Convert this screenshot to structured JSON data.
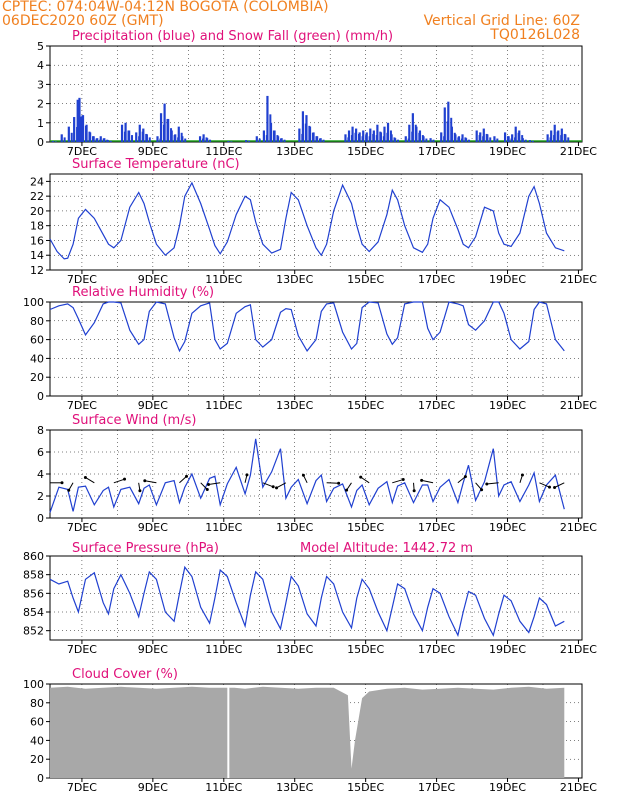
{
  "header": {
    "line1_left": "CPTEC:   074:04W-04:12N   BOGOTA (COLOMBIA)",
    "line2_left": "06DEC2020 60Z (GMT)",
    "line2_right": "Vertical Grid Line: 60Z",
    "line3_right": "TQ0126L028"
  },
  "colors": {
    "header": "#f08020",
    "title": "#e0107a",
    "line": "#2040d0",
    "snow": "#20a020",
    "cloud": "#a8a8a8"
  },
  "x_ticks": [
    "7DEC",
    "9DEC",
    "11DEC",
    "13DEC",
    "15DEC",
    "17DEC",
    "19DEC",
    "21DEC"
  ],
  "chart_data": [
    {
      "type": "bar",
      "title": "Precipitation (blue) and Snow Fall (green) (mm/h)",
      "ylim": [
        0,
        5
      ],
      "yticks": [
        0,
        1,
        2,
        3,
        4,
        5
      ],
      "x_unit": "days since 06DEC2020 06Z",
      "series": [
        {
          "name": "Precipitation",
          "values": [
            [
              0.05,
              0.05
            ],
            [
              0.3,
              0.4
            ],
            [
              0.5,
              0.8
            ],
            [
              0.65,
              1.3
            ],
            [
              0.75,
              2.2
            ],
            [
              0.8,
              2.3
            ],
            [
              0.9,
              1.4
            ],
            [
              1.0,
              0.9
            ],
            [
              1.1,
              0.5
            ],
            [
              1.2,
              0.3
            ],
            [
              1.3,
              0.2
            ],
            [
              1.4,
              0.3
            ],
            [
              1.5,
              0.2
            ],
            [
              1.6,
              0.1
            ],
            [
              2.0,
              0.9
            ],
            [
              2.1,
              1.0
            ],
            [
              2.2,
              0.6
            ],
            [
              2.4,
              0.5
            ],
            [
              2.5,
              0.9
            ],
            [
              2.6,
              0.7
            ],
            [
              2.7,
              0.4
            ],
            [
              3.0,
              0.3
            ],
            [
              3.1,
              1.5
            ],
            [
              3.2,
              2.0
            ],
            [
              3.3,
              1.2
            ],
            [
              3.4,
              0.6
            ],
            [
              3.5,
              0.4
            ],
            [
              3.6,
              0.8
            ],
            [
              3.7,
              0.3
            ],
            [
              4.2,
              0.3
            ],
            [
              4.3,
              0.4
            ],
            [
              4.4,
              0.2
            ],
            [
              5.0,
              0.05
            ],
            [
              5.5,
              0.1
            ],
            [
              5.8,
              0.3
            ],
            [
              6.0,
              0.6
            ],
            [
              6.1,
              2.4
            ],
            [
              6.2,
              1.0
            ],
            [
              6.3,
              0.6
            ],
            [
              6.4,
              0.3
            ],
            [
              6.5,
              0.2
            ],
            [
              7.0,
              0.7
            ],
            [
              7.1,
              1.6
            ],
            [
              7.2,
              1.4
            ],
            [
              7.3,
              0.8
            ],
            [
              7.4,
              0.5
            ],
            [
              7.5,
              0.3
            ],
            [
              7.6,
              0.2
            ],
            [
              8.3,
              0.4
            ],
            [
              8.4,
              0.6
            ],
            [
              8.5,
              0.8
            ],
            [
              8.6,
              0.7
            ],
            [
              8.7,
              0.5
            ],
            [
              8.8,
              0.6
            ],
            [
              8.9,
              0.5
            ],
            [
              9.0,
              0.7
            ],
            [
              9.1,
              0.6
            ],
            [
              9.2,
              0.9
            ],
            [
              9.3,
              0.5
            ],
            [
              9.4,
              0.8
            ],
            [
              9.5,
              1.0
            ],
            [
              9.6,
              0.4
            ],
            [
              9.7,
              0.2
            ],
            [
              10.0,
              0.3
            ],
            [
              10.1,
              0.9
            ],
            [
              10.2,
              1.5
            ],
            [
              10.3,
              0.8
            ],
            [
              10.4,
              0.6
            ],
            [
              10.5,
              0.3
            ],
            [
              10.7,
              0.2
            ],
            [
              11.0,
              0.5
            ],
            [
              11.1,
              1.8
            ],
            [
              11.2,
              2.1
            ],
            [
              11.3,
              0.8
            ],
            [
              11.4,
              0.4
            ],
            [
              11.5,
              0.3
            ],
            [
              11.6,
              0.4
            ],
            [
              11.7,
              0.2
            ],
            [
              12.0,
              0.6
            ],
            [
              12.1,
              0.5
            ],
            [
              12.2,
              0.7
            ],
            [
              12.3,
              0.4
            ],
            [
              12.5,
              0.3
            ],
            [
              12.8,
              0.5
            ],
            [
              12.9,
              0.3
            ],
            [
              13.0,
              0.4
            ],
            [
              13.1,
              0.8
            ],
            [
              13.2,
              0.6
            ],
            [
              13.3,
              0.2
            ],
            [
              13.5,
              0.1
            ],
            [
              14.0,
              0.4
            ],
            [
              14.1,
              0.6
            ],
            [
              14.2,
              0.9
            ],
            [
              14.3,
              0.6
            ],
            [
              14.4,
              0.7
            ],
            [
              14.5,
              0.4
            ]
          ]
        },
        {
          "name": "Snow Fall",
          "values": []
        }
      ]
    },
    {
      "type": "line",
      "title": "Surface Temperature (nC)",
      "ylim": [
        12,
        25
      ],
      "yticks": [
        12,
        14,
        16,
        18,
        20,
        22,
        24
      ],
      "x": [
        0.0,
        0.2,
        0.4,
        0.5,
        0.65,
        0.8,
        1.0,
        1.25,
        1.5,
        1.65,
        1.8,
        2.0,
        2.25,
        2.5,
        2.65,
        2.8,
        3.0,
        3.25,
        3.5,
        3.65,
        3.8,
        4.0,
        4.25,
        4.5,
        4.65,
        4.8,
        5.0,
        5.25,
        5.5,
        5.65,
        5.8,
        6.0,
        6.25,
        6.5,
        6.65,
        6.8,
        7.0,
        7.25,
        7.5,
        7.65,
        7.8,
        8.0,
        8.25,
        8.5,
        8.65,
        8.8,
        9.0,
        9.25,
        9.5,
        9.65,
        9.8,
        10.0,
        10.25,
        10.5,
        10.65,
        10.8,
        11.0,
        11.25,
        11.5,
        11.65,
        11.8,
        12.0,
        12.25,
        12.5,
        12.65,
        12.8,
        13.0,
        13.25,
        13.5,
        13.65,
        13.8,
        14.0,
        14.25,
        14.5
      ],
      "values": [
        16.2,
        14.5,
        13.5,
        13.6,
        15.5,
        19.0,
        20.2,
        19.0,
        16.8,
        15.5,
        15.0,
        16.0,
        20.5,
        22.5,
        21.0,
        18.5,
        15.5,
        14.0,
        15.0,
        18.0,
        22.0,
        23.8,
        21.0,
        17.5,
        15.3,
        14.2,
        15.8,
        19.5,
        22.0,
        21.5,
        18.5,
        15.5,
        14.3,
        14.8,
        19.0,
        22.5,
        21.5,
        18.0,
        15.0,
        14.0,
        15.5,
        20.0,
        23.5,
        21.0,
        18.0,
        15.5,
        14.5,
        15.8,
        19.5,
        22.8,
        21.5,
        18.0,
        15.0,
        14.4,
        15.5,
        19.0,
        21.5,
        20.5,
        17.5,
        15.5,
        15.0,
        16.5,
        20.5,
        20.0,
        17.0,
        15.5,
        15.2,
        17.0,
        22.0,
        23.3,
        21.0,
        17.0,
        15.0,
        14.6
      ]
    },
    {
      "type": "line",
      "title": "Relative Humidity (%)",
      "ylim": [
        0,
        100
      ],
      "yticks": [
        0,
        20,
        40,
        60,
        80,
        100
      ],
      "x": [
        0.0,
        0.25,
        0.5,
        0.65,
        0.8,
        1.0,
        1.25,
        1.5,
        1.65,
        1.8,
        2.0,
        2.25,
        2.5,
        2.65,
        2.8,
        3.0,
        3.25,
        3.5,
        3.65,
        3.8,
        4.0,
        4.25,
        4.5,
        4.65,
        4.8,
        5.0,
        5.25,
        5.5,
        5.65,
        5.8,
        6.0,
        6.25,
        6.5,
        6.65,
        6.8,
        7.0,
        7.25,
        7.5,
        7.65,
        7.8,
        8.0,
        8.25,
        8.5,
        8.65,
        8.8,
        9.0,
        9.25,
        9.5,
        9.65,
        9.8,
        10.0,
        10.25,
        10.5,
        10.65,
        10.8,
        11.0,
        11.25,
        11.5,
        11.65,
        11.8,
        12.0,
        12.25,
        12.5,
        12.65,
        12.8,
        13.0,
        13.25,
        13.5,
        13.65,
        13.8,
        14.0,
        14.25,
        14.5
      ],
      "values": [
        92,
        96,
        98,
        94,
        82,
        65,
        78,
        98,
        100,
        100,
        99,
        70,
        55,
        60,
        90,
        100,
        98,
        62,
        48,
        58,
        88,
        96,
        99,
        60,
        50,
        56,
        88,
        95,
        97,
        60,
        52,
        60,
        89,
        93,
        92,
        64,
        48,
        60,
        90,
        98,
        99,
        68,
        50,
        56,
        94,
        100,
        99,
        66,
        55,
        62,
        98,
        100,
        100,
        72,
        60,
        68,
        100,
        98,
        96,
        76,
        70,
        80,
        100,
        100,
        88,
        60,
        50,
        58,
        92,
        100,
        98,
        60,
        48
      ]
    },
    {
      "type": "line",
      "title": "Surface Wind (m/s)",
      "ylim": [
        0,
        8
      ],
      "yticks": [
        0,
        2,
        4,
        6,
        8
      ],
      "x": [
        0.0,
        0.25,
        0.5,
        0.65,
        0.8,
        1.0,
        1.25,
        1.5,
        1.65,
        1.8,
        2.0,
        2.25,
        2.5,
        2.65,
        2.8,
        3.0,
        3.25,
        3.5,
        3.65,
        3.8,
        4.0,
        4.25,
        4.5,
        4.65,
        4.8,
        5.0,
        5.25,
        5.5,
        5.65,
        5.8,
        6.0,
        6.25,
        6.5,
        6.65,
        6.8,
        7.0,
        7.25,
        7.5,
        7.65,
        7.8,
        8.0,
        8.25,
        8.5,
        8.65,
        8.8,
        9.0,
        9.25,
        9.5,
        9.65,
        9.8,
        10.0,
        10.25,
        10.5,
        10.65,
        10.8,
        11.0,
        11.25,
        11.5,
        11.65,
        11.8,
        12.0,
        12.25,
        12.5,
        12.65,
        12.8,
        13.0,
        13.25,
        13.5,
        13.65,
        13.8,
        14.0,
        14.25,
        14.5
      ],
      "values": [
        0.5,
        2.8,
        2.6,
        0.6,
        2.8,
        2.9,
        1.2,
        2.5,
        2.8,
        1.0,
        2.6,
        2.8,
        1.3,
        2.7,
        3.0,
        1.2,
        3.2,
        3.4,
        1.4,
        2.8,
        4.0,
        1.8,
        3.6,
        3.8,
        1.2,
        3.1,
        4.6,
        2.2,
        3.9,
        7.2,
        2.8,
        4.2,
        6.3,
        1.8,
        2.8,
        3.5,
        1.3,
        3.4,
        3.9,
        1.5,
        2.7,
        3.1,
        1.0,
        2.5,
        3.0,
        1.2,
        2.7,
        3.3,
        1.4,
        2.9,
        3.2,
        1.4,
        3.0,
        3.0,
        1.5,
        2.8,
        3.5,
        1.4,
        3.2,
        4.8,
        1.6,
        3.3,
        6.3,
        2.0,
        3.0,
        3.3,
        1.5,
        3.0,
        4.1,
        1.5,
        3.0,
        3.9,
        0.8
      ]
    },
    {
      "type": "line",
      "title": "Surface Pressure (hPa)",
      "annotation": "Model Altitude: 1442.72 m",
      "ylim": [
        851,
        860
      ],
      "yticks": [
        852,
        854,
        856,
        858,
        860
      ],
      "x": [
        0.0,
        0.25,
        0.5,
        0.65,
        0.8,
        1.0,
        1.25,
        1.5,
        1.65,
        1.8,
        2.0,
        2.25,
        2.5,
        2.65,
        2.8,
        3.0,
        3.25,
        3.5,
        3.65,
        3.8,
        4.0,
        4.25,
        4.5,
        4.65,
        4.8,
        5.0,
        5.25,
        5.5,
        5.65,
        5.8,
        6.0,
        6.25,
        6.5,
        6.65,
        6.8,
        7.0,
        7.25,
        7.5,
        7.65,
        7.8,
        8.0,
        8.25,
        8.5,
        8.65,
        8.8,
        9.0,
        9.25,
        9.5,
        9.65,
        9.8,
        10.0,
        10.25,
        10.5,
        10.65,
        10.8,
        11.0,
        11.25,
        11.5,
        11.65,
        11.8,
        12.0,
        12.25,
        12.5,
        12.65,
        12.8,
        13.0,
        13.25,
        13.5,
        13.65,
        13.8,
        14.0,
        14.25,
        14.5
      ],
      "values": [
        857.5,
        857.0,
        857.3,
        855.5,
        854.0,
        857.5,
        858.2,
        855.0,
        853.8,
        856.5,
        858.0,
        856.0,
        853.5,
        856.0,
        858.3,
        857.5,
        854.0,
        853.0,
        856.0,
        858.8,
        857.8,
        854.5,
        852.8,
        855.5,
        858.5,
        857.8,
        855.0,
        852.5,
        855.8,
        858.3,
        857.5,
        854.0,
        852.2,
        855.0,
        857.8,
        856.8,
        853.8,
        852.5,
        855.5,
        857.8,
        857.0,
        854.0,
        852.3,
        855.5,
        857.5,
        856.5,
        854.0,
        852.0,
        854.5,
        857.0,
        856.5,
        853.8,
        852.0,
        854.5,
        856.5,
        856.0,
        853.5,
        851.5,
        854.0,
        856.2,
        855.8,
        853.3,
        851.5,
        853.8,
        855.8,
        855.2,
        853.0,
        851.8,
        853.5,
        855.5,
        854.8,
        852.5,
        853.0
      ]
    },
    {
      "type": "area",
      "title": "Cloud Cover (%)",
      "ylim": [
        0,
        100
      ],
      "yticks": [
        0,
        20,
        40,
        60,
        80,
        100
      ],
      "x": [
        0.0,
        0.5,
        1.0,
        1.5,
        2.0,
        2.5,
        3.0,
        3.5,
        4.0,
        4.5,
        5.0,
        5.2,
        5.5,
        6.0,
        6.5,
        7.0,
        7.5,
        8.0,
        8.2,
        8.4,
        8.5,
        8.6,
        8.8,
        9.0,
        9.5,
        10.0,
        10.5,
        11.0,
        11.5,
        12.0,
        12.5,
        13.0,
        13.5,
        14.0,
        14.5
      ],
      "values": [
        96,
        97,
        95,
        96,
        97,
        96,
        95,
        96,
        97,
        96,
        96,
        96,
        95,
        97,
        96,
        95,
        96,
        96,
        92,
        88,
        10,
        40,
        85,
        92,
        95,
        96,
        94,
        95,
        96,
        95,
        94,
        96,
        97,
        95,
        96
      ]
    }
  ]
}
